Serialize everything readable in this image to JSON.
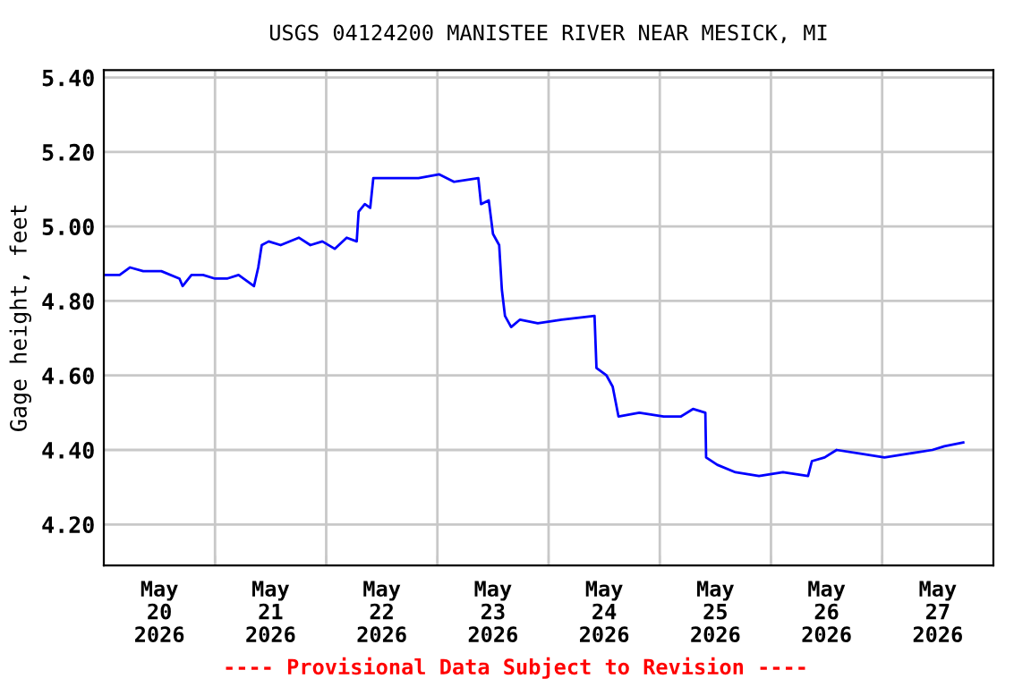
{
  "chart_data": {
    "type": "line",
    "title": "USGS 04124200 MANISTEE RIVER NEAR MESICK, MI",
    "ylabel": "Gage height, feet",
    "annotations": [
      "---- Provisional Data Subject to Revision ----"
    ],
    "x": [
      "2026-05-20T00:20",
      "2026-05-20T03:25",
      "2026-05-20T05:40",
      "2026-05-20T08:30",
      "2026-05-20T12:25",
      "2026-05-20T16:20",
      "2026-05-20T17:00",
      "2026-05-20T18:55",
      "2026-05-20T21:25",
      "2026-05-21T00:00",
      "2026-05-21T02:35",
      "2026-05-21T05:05",
      "2026-05-21T08:25",
      "2026-05-21T09:20",
      "2026-05-21T10:05",
      "2026-05-21T11:35",
      "2026-05-21T14:10",
      "2026-05-21T18:05",
      "2026-05-21T20:35",
      "2026-05-21T23:10",
      "2026-05-22T01:50",
      "2026-05-22T04:25",
      "2026-05-22T06:35",
      "2026-05-22T07:00",
      "2026-05-22T08:20",
      "2026-05-22T09:30",
      "2026-05-22T10:10",
      "2026-05-22T12:05",
      "2026-05-22T17:20",
      "2026-05-22T19:55",
      "2026-05-23T00:25",
      "2026-05-23T03:35",
      "2026-05-23T08:50",
      "2026-05-23T09:25",
      "2026-05-23T11:05",
      "2026-05-23T12:00",
      "2026-05-23T13:20",
      "2026-05-23T13:55",
      "2026-05-23T14:35",
      "2026-05-23T15:55",
      "2026-05-23T17:50",
      "2026-05-23T21:40",
      "2026-05-24T02:50",
      "2026-05-24T09:55",
      "2026-05-24T10:20",
      "2026-05-24T12:30",
      "2026-05-24T13:50",
      "2026-05-24T15:05",
      "2026-05-24T19:35",
      "2026-05-25T00:50",
      "2026-05-25T04:35",
      "2026-05-25T07:10",
      "2026-05-25T09:50",
      "2026-05-25T10:00",
      "2026-05-25T12:25",
      "2026-05-25T16:20",
      "2026-05-25T21:25",
      "2026-05-26T02:35",
      "2026-05-26T08:00",
      "2026-05-26T08:50",
      "2026-05-26T11:35",
      "2026-05-26T14:10",
      "2026-05-26T19:20",
      "2026-05-27T00:30",
      "2026-05-27T05:40",
      "2026-05-27T10:50",
      "2026-05-27T13:25",
      "2026-05-27T17:30"
    ],
    "series": [
      {
        "color": "#0000ff",
        "values": [
          4.87,
          4.87,
          4.89,
          4.88,
          4.88,
          4.86,
          4.84,
          4.87,
          4.87,
          4.86,
          4.86,
          4.87,
          4.84,
          4.89,
          4.95,
          4.96,
          4.95,
          4.97,
          4.95,
          4.96,
          4.94,
          4.97,
          4.96,
          5.04,
          5.06,
          5.05,
          5.13,
          5.13,
          5.13,
          5.13,
          5.14,
          5.12,
          5.13,
          5.06,
          5.07,
          4.98,
          4.95,
          4.83,
          4.76,
          4.73,
          4.75,
          4.74,
          4.75,
          4.76,
          4.62,
          4.6,
          4.57,
          4.49,
          4.5,
          4.49,
          4.49,
          4.51,
          4.5,
          4.38,
          4.36,
          4.34,
          4.33,
          4.34,
          4.33,
          4.37,
          4.38,
          4.4,
          4.39,
          4.38,
          4.39,
          4.4,
          4.41,
          4.42
        ]
      }
    ],
    "xlim": [
      "2026-05-20T00:00",
      "2026-05-28T00:00"
    ],
    "xticks": [
      {
        "value": "2026-05-20T12:00",
        "label": "May\n20\n2026"
      },
      {
        "value": "2026-05-21T00:00",
        "label": null
      },
      {
        "value": "2026-05-21T12:00",
        "label": "May\n21\n2026"
      },
      {
        "value": "2026-05-22T00:00",
        "label": null
      },
      {
        "value": "2026-05-22T12:00",
        "label": "May\n22\n2026"
      },
      {
        "value": "2026-05-23T00:00",
        "label": null
      },
      {
        "value": "2026-05-23T12:00",
        "label": "May\n23\n2026"
      },
      {
        "value": "2026-05-24T00:00",
        "label": null
      },
      {
        "value": "2026-05-24T12:00",
        "label": "May\n24\n2026"
      },
      {
        "value": "2026-05-25T00:00",
        "label": null
      },
      {
        "value": "2026-05-25T12:00",
        "label": "May\n25\n2026"
      },
      {
        "value": "2026-05-26T00:00",
        "label": null
      },
      {
        "value": "2026-05-26T12:00",
        "label": "May\n26\n2026"
      },
      {
        "value": "2026-05-27T00:00",
        "label": null
      },
      {
        "value": "2026-05-27T12:00",
        "label": "May\n27\n2026"
      }
    ],
    "ylim": [
      4.09,
      5.42
    ],
    "yticks": [
      {
        "value": 4.2,
        "label": "4.20"
      },
      {
        "value": 4.4,
        "label": "4.40"
      },
      {
        "value": 4.6,
        "label": "4.60"
      },
      {
        "value": 4.8,
        "label": "4.80"
      },
      {
        "value": 5.0,
        "label": "5.00"
      },
      {
        "value": 5.2,
        "label": "5.20"
      },
      {
        "value": 5.4,
        "label": "5.40"
      }
    ],
    "grid": true,
    "line_style": "solid",
    "marker": "none"
  }
}
